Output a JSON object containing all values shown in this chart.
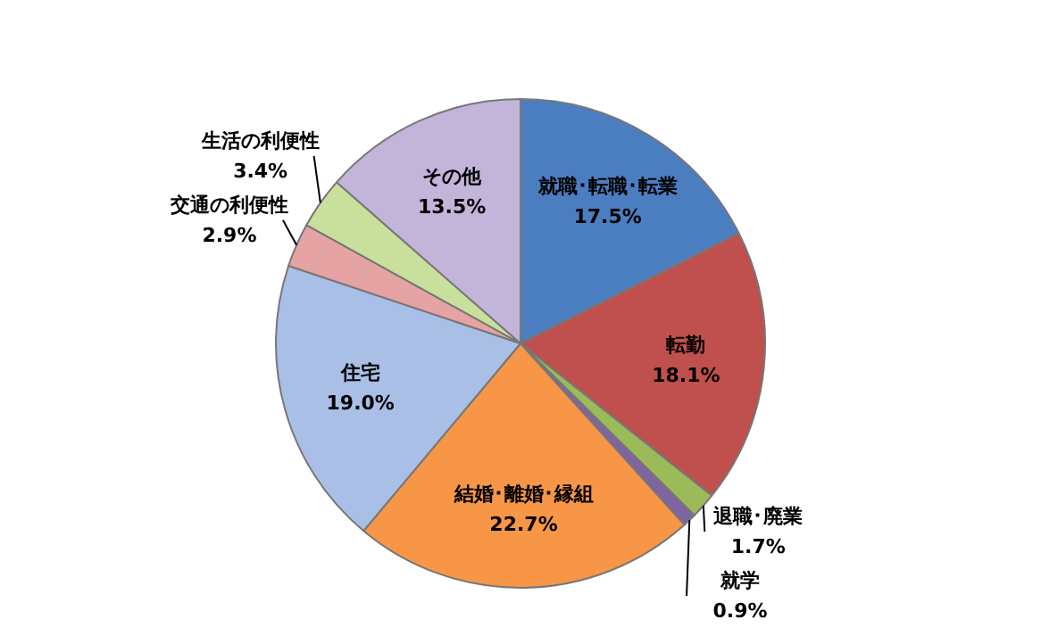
{
  "chart_data": {
    "type": "pie",
    "categories": [
      "就職･転職･転業",
      "転勤",
      "退職･廃業",
      "就学",
      "結婚･離婚･縁組",
      "住宅",
      "交通の利便性",
      "生活の利便性",
      "その他"
    ],
    "values": [
      17.5,
      18.1,
      1.7,
      0.9,
      22.7,
      19.0,
      2.9,
      3.4,
      13.5
    ],
    "value_labels": [
      "17.5%",
      "18.1%",
      "1.7%",
      "0.9%",
      "22.7%",
      "19.0%",
      "2.9%",
      "3.4%",
      "13.5%"
    ],
    "colors": [
      "#4a7ec0",
      "#c0504d",
      "#9bbb59",
      "#8064a2",
      "#f79646",
      "#a9bfe6",
      "#e6a3a3",
      "#c9e09c",
      "#c3b4da"
    ],
    "legend": false
  }
}
